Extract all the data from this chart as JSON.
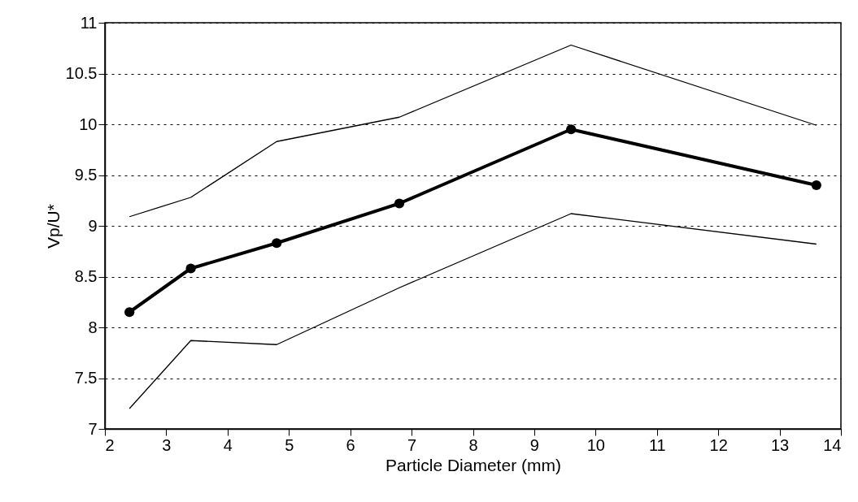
{
  "chart_data": {
    "type": "line",
    "xlabel": "Particle Diameter (mm)",
    "ylabel": "Vp/U*",
    "x": [
      2.4,
      3.4,
      4.8,
      6.8,
      9.6,
      13.6
    ],
    "series": [
      {
        "color": "#000000",
        "marker": "circle",
        "values": [
          8.15,
          8.58,
          8.83,
          9.22,
          9.95,
          9.4
        ]
      },
      {
        "color": "#000000",
        "marker": "none",
        "values": [
          9.09,
          9.28,
          9.83,
          10.07,
          10.78,
          9.99
        ]
      },
      {
        "color": "#000000",
        "marker": "none",
        "values": [
          7.2,
          7.87,
          7.83,
          8.39,
          9.12,
          8.82
        ]
      }
    ],
    "xlim": [
      2,
      14
    ],
    "xticks": [
      2,
      3,
      4,
      5,
      6,
      7,
      8,
      9,
      10,
      11,
      12,
      13,
      14
    ],
    "ylim": [
      7,
      11
    ],
    "yticks": [
      7,
      7.5,
      8,
      8.5,
      9,
      9.5,
      10,
      10.5,
      11
    ],
    "grid": "y",
    "line_style": "solid"
  }
}
